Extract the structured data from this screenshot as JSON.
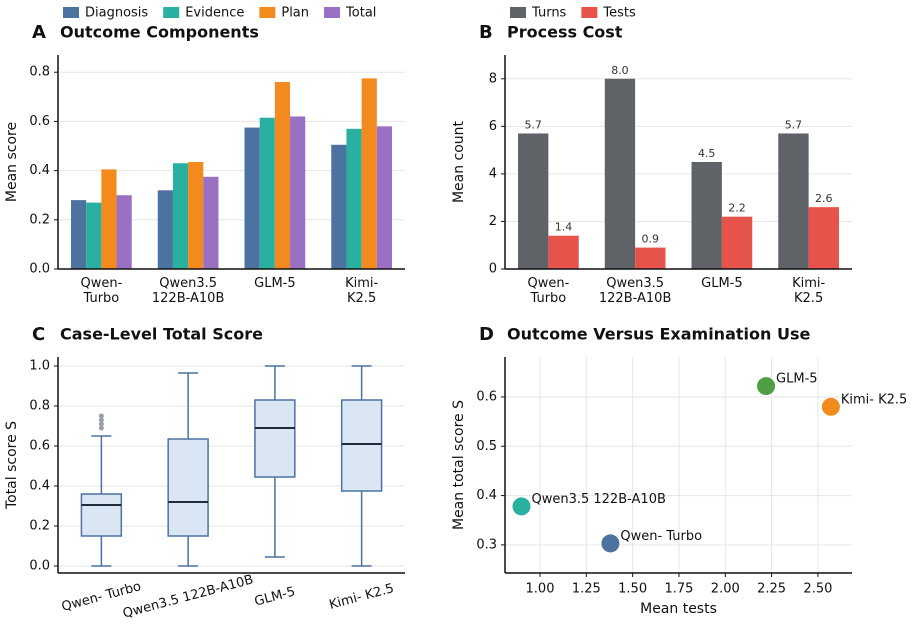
{
  "chart_data": [
    {
      "type": "bar",
      "panel": "A",
      "title": "Outcome Components",
      "ylabel": "Mean score",
      "categories": [
        "Qwen-\nTurbo",
        "Qwen3.5\n122B-A10B",
        "GLM-5",
        "Kimi-\nK2.5"
      ],
      "series": [
        {
          "name": "Diagnosis",
          "color": "#4c72a0",
          "values": [
            0.28,
            0.32,
            0.575,
            0.505
          ]
        },
        {
          "name": "Evidence",
          "color": "#2ab0a0",
          "values": [
            0.27,
            0.43,
            0.615,
            0.57
          ]
        },
        {
          "name": "Plan",
          "color": "#f28a1e",
          "values": [
            0.405,
            0.435,
            0.76,
            0.775
          ]
        },
        {
          "name": "Total",
          "color": "#9970c2",
          "values": [
            0.3,
            0.375,
            0.62,
            0.58
          ]
        }
      ],
      "ylim": [
        0,
        0.87
      ],
      "yticks": [
        {
          "value": 0,
          "label": "0.0"
        },
        0.2,
        0.4,
        0.6,
        0.8
      ],
      "grid": true,
      "legend": "top"
    },
    {
      "type": "bar",
      "panel": "B",
      "title": "Process Cost",
      "ylabel": "Mean count",
      "categories": [
        "Qwen-\nTurbo",
        "Qwen3.5\n122B-A10B",
        "GLM-5",
        "Kimi-\nK2.5"
      ],
      "series": [
        {
          "name": "Turns",
          "color": "#5f6266",
          "values": [
            5.7,
            8.0,
            4.5,
            5.7
          ],
          "value_labels": [
            "5.7",
            "8.0",
            "4.5",
            "5.7"
          ]
        },
        {
          "name": "Tests",
          "color": "#e5534b",
          "values": [
            1.4,
            0.9,
            2.2,
            2.6
          ]
        }
      ],
      "ylim": [
        0,
        9
      ],
      "yticks": [
        0,
        2,
        4,
        6,
        8
      ],
      "grid": true,
      "legend": "top"
    },
    {
      "type": "box",
      "panel": "C",
      "title": "Case-Level Total Score",
      "ylabel": "Total score S",
      "categories": [
        "Qwen- Turbo",
        "Qwen3.5 122B-A10B",
        "GLM-5",
        "Kimi- K2.5"
      ],
      "color": "#4c72a0",
      "fill": "#dbe6f5",
      "boxes": [
        {
          "whislo": 0,
          "q1": 0.15,
          "med": 0.305,
          "q3": 0.36,
          "whishi": 0.65,
          "fliers": [
            0.69,
            0.71,
            0.73,
            0.75
          ]
        },
        {
          "whislo": 0,
          "q1": 0.15,
          "med": 0.32,
          "q3": 0.635,
          "whishi": 0.965,
          "fliers": []
        },
        {
          "whislo": 0.045,
          "q1": 0.445,
          "med": 0.69,
          "q3": 0.83,
          "whishi": 1.0,
          "fliers": []
        },
        {
          "whislo": 0,
          "q1": 0.375,
          "med": 0.61,
          "q3": 0.83,
          "whishi": 1.0,
          "fliers": []
        }
      ],
      "ylim": [
        -0.035,
        1.045
      ],
      "yticks": [
        {
          "value": 0,
          "label": "0.0"
        },
        0.2,
        0.4,
        0.6,
        0.8,
        {
          "value": 1,
          "label": "1.0"
        }
      ],
      "grid": true
    },
    {
      "type": "scatter",
      "panel": "D",
      "title": "Outcome Versus Examination Use",
      "xlabel": "Mean tests",
      "ylabel": "Mean total score S",
      "labels": [
        "Qwen- Turbo",
        "Qwen3.5 122B-A10B",
        "GLM-5",
        "Kimi- K2.5"
      ],
      "x": [
        1.38,
        0.9,
        2.22,
        2.57
      ],
      "values": [
        0.303,
        0.378,
        0.622,
        0.58
      ],
      "colors": [
        "#4c72a0",
        "#2ab0a0",
        "#4f9e44",
        "#f28a1e"
      ],
      "xlim": [
        0.811,
        2.684
      ],
      "xticks": [
        {
          "value": 1,
          "label": "1.00"
        },
        {
          "value": 1.25,
          "label": "1.25"
        },
        {
          "value": 1.5,
          "label": "1.50"
        },
        {
          "value": 1.75,
          "label": "1.75"
        },
        {
          "value": 2,
          "label": "2.00"
        },
        {
          "value": 2.25,
          "label": "2.25"
        },
        {
          "value": 2.5,
          "label": "2.50"
        }
      ],
      "ylim": [
        0.243,
        0.681
      ],
      "yticks": [
        0.3,
        0.4,
        0.5,
        0.6
      ],
      "grid": true
    }
  ]
}
